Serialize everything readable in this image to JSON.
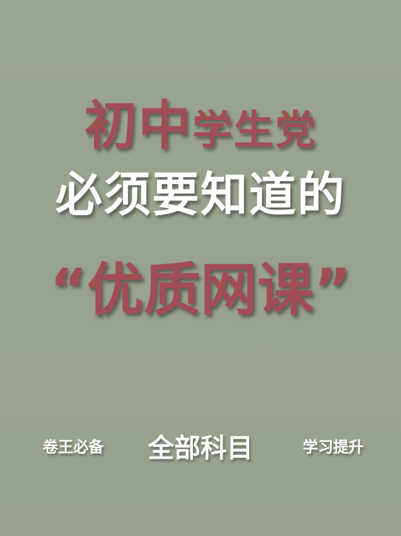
{
  "headline": {
    "line1_big": "初中",
    "line1_small": "学生党",
    "line2": "必须要知道的",
    "line3": "“优质网课”"
  },
  "footer": {
    "left": "卷王必备",
    "center": "全部科目",
    "right": "学习提升"
  },
  "colors": {
    "background": "#99a48e",
    "accent_red": "#a24d55",
    "text_white": "#ffffff"
  }
}
